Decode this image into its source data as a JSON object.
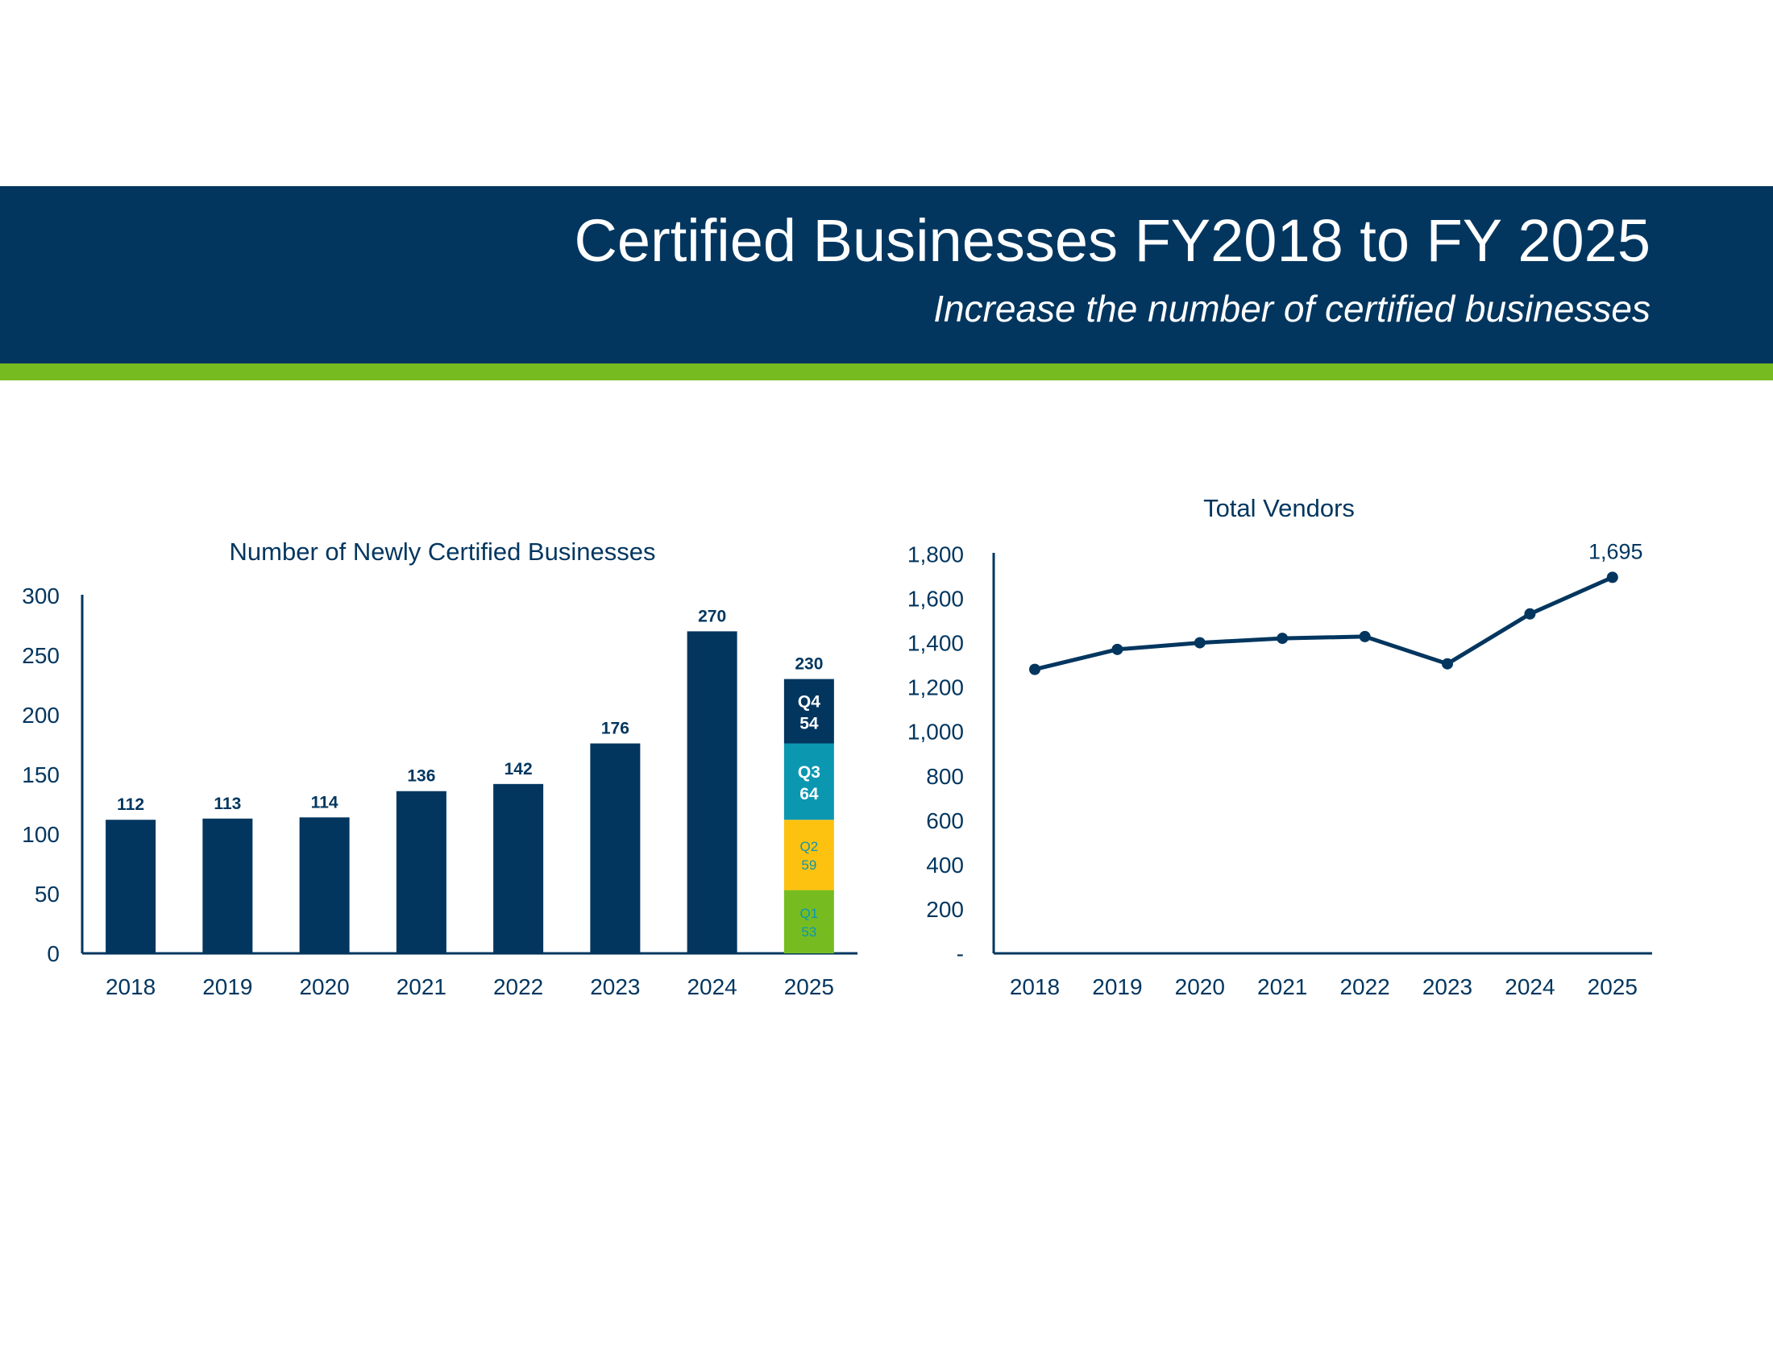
{
  "header": {
    "title": "Certified Businesses FY2018 to FY 2025",
    "subtitle": "Increase the number of certified businesses"
  },
  "colors": {
    "navy": "#02365f",
    "green": "#76bc21",
    "q4": "#02365f",
    "q3": "#0c97b1",
    "q2": "#fdc20f",
    "q1": "#76bc21"
  },
  "chart_data": [
    {
      "type": "bar",
      "title": "Number of Newly Certified Businesses",
      "categories": [
        "2018",
        "2019",
        "2020",
        "2021",
        "2022",
        "2023",
        "2024",
        "2025"
      ],
      "values": [
        112,
        113,
        114,
        136,
        142,
        176,
        270,
        230
      ],
      "value_labels": [
        "112",
        "113",
        "114",
        "136",
        "142",
        "176",
        "270",
        "230"
      ],
      "ylim": [
        0,
        300
      ],
      "yticks": [
        "0",
        "50",
        "100",
        "150",
        "200",
        "250",
        "300"
      ],
      "stacked_2025": [
        {
          "label": "Q1",
          "value": 53,
          "value_label": "53"
        },
        {
          "label": "Q2",
          "value": 59,
          "value_label": "59"
        },
        {
          "label": "Q3",
          "value": 64,
          "value_label": "64"
        },
        {
          "label": "Q4",
          "value": 54,
          "value_label": "54"
        }
      ],
      "grid": false
    },
    {
      "type": "line",
      "title": "Total Vendors",
      "categories": [
        "2018",
        "2019",
        "2020",
        "2021",
        "2022",
        "2023",
        "2024",
        "2025"
      ],
      "values": [
        1280,
        1370,
        1400,
        1420,
        1428,
        1305,
        1530,
        1695
      ],
      "ylim": [
        0,
        1800
      ],
      "yticks": [
        "-",
        "200",
        "400",
        "600",
        "800",
        "1,000",
        "1,200",
        "1,400",
        "1,600",
        "1,800"
      ],
      "annotations": [
        {
          "category": "2025",
          "text": "1,695"
        }
      ],
      "grid": false
    }
  ]
}
